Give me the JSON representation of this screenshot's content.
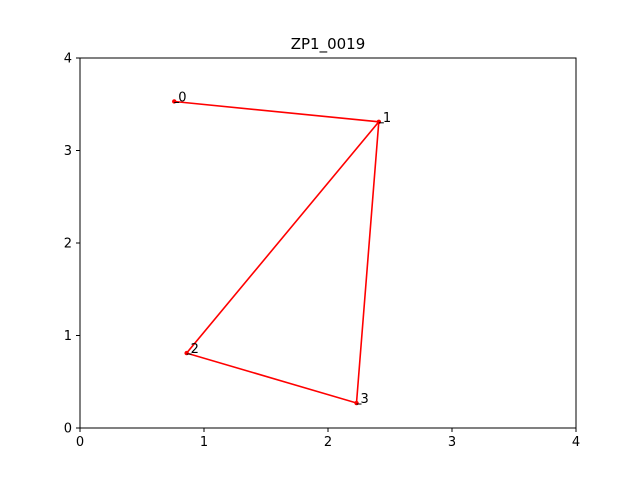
{
  "chart_data": {
    "type": "line",
    "title": "ZP1_0019",
    "xlabel": "",
    "ylabel": "",
    "xlim": [
      0,
      4
    ],
    "ylim": [
      0,
      4
    ],
    "x_ticks": [
      "0",
      "1",
      "2",
      "3",
      "4"
    ],
    "y_ticks": [
      "0",
      "1",
      "2",
      "3",
      "4"
    ],
    "grid": false,
    "legend": "none",
    "series": [
      {
        "color": "#ff0000",
        "marker": "dot",
        "points": [
          {
            "label": "0",
            "x": 0.76,
            "y": 3.53
          },
          {
            "label": "1",
            "x": 2.41,
            "y": 3.31
          },
          {
            "label": "2",
            "x": 0.86,
            "y": 0.81
          },
          {
            "label": "3",
            "x": 2.23,
            "y": 0.27
          }
        ],
        "path_order": [
          "0",
          "1",
          "2",
          "3",
          "1"
        ]
      }
    ]
  }
}
